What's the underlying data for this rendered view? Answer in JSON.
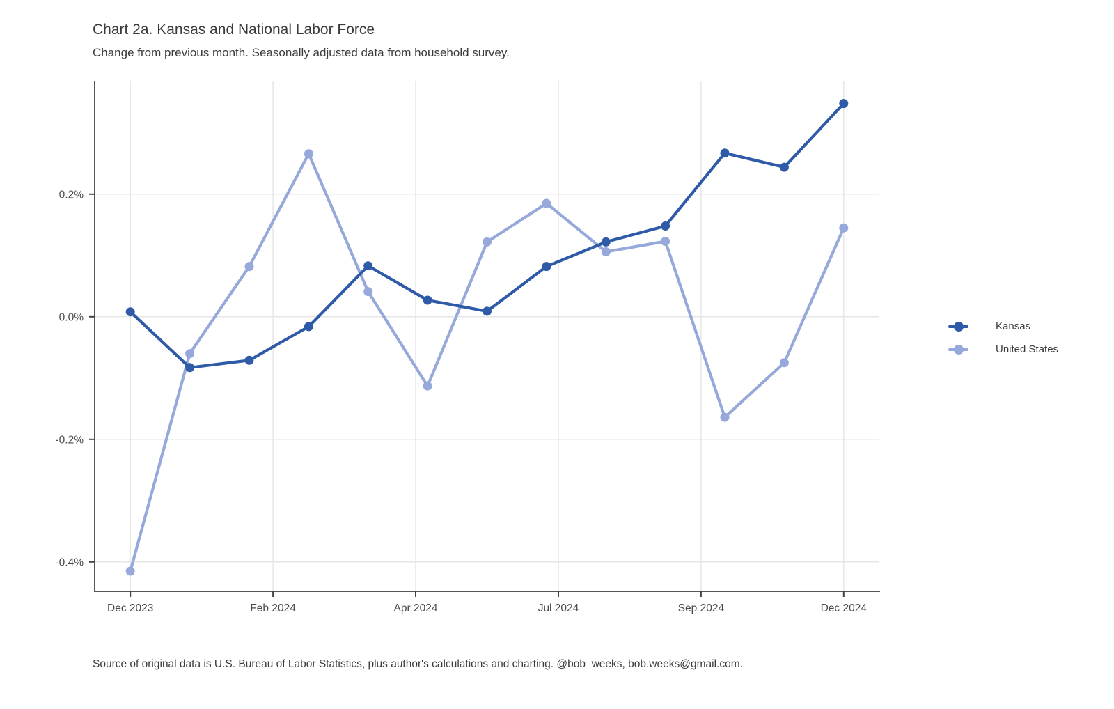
{
  "header": {
    "title": "Chart 2a. Kansas and National Labor Force",
    "subtitle": "Change from previous month. Seasonally adjusted data from household survey."
  },
  "caption": {
    "text": "Source of original data is U.S. Bureau of Labor Statistics, plus author's calculations and charting. @bob_weeks, bob.weeks@gmail.com."
  },
  "legend": {
    "position": "right",
    "items": [
      {
        "label": "Kansas",
        "color": "#2e5aa8"
      },
      {
        "label": "United States",
        "color": "#97a9da"
      }
    ]
  },
  "chart_data": {
    "type": "line",
    "title": "Chart 2a. Kansas and National Labor Force",
    "subtitle": "Change from previous month. Seasonally adjusted data from household survey.",
    "x": [
      "Dec 2023",
      "Jan 2024",
      "Feb 2024",
      "Mar 2024",
      "Apr 2024",
      "May 2024",
      "Jun 2024",
      "Jul 2024",
      "Aug 2024",
      "Sep 2024",
      "Oct 2024",
      "Nov 2024",
      "Dec 2024"
    ],
    "series": [
      {
        "name": "Kansas",
        "color": "#2e5aa8",
        "values": [
          0.008,
          -0.083,
          -0.071,
          -0.016,
          0.083,
          0.027,
          0.009,
          0.082,
          0.122,
          0.148,
          0.267,
          0.244,
          0.348
        ]
      },
      {
        "name": "United States",
        "color": "#97a9da",
        "values": [
          -0.415,
          -0.06,
          0.082,
          0.266,
          0.041,
          -0.113,
          0.122,
          0.185,
          0.106,
          0.123,
          -0.164,
          -0.075,
          0.145
        ]
      }
    ],
    "ylabel": "",
    "xlabel": "",
    "y_ticks": [
      0.2,
      0.0,
      -0.2,
      -0.4
    ],
    "y_tick_labels": [
      "0.2%",
      "0.0%",
      "-0.2%",
      "-0.4%"
    ],
    "x_tick_positions": [
      0,
      2.4,
      4.8,
      7.2,
      9.6,
      12
    ],
    "x_tick_labels": [
      "Dec 2023",
      "Feb 2024",
      "Apr 2024",
      "Jul 2024",
      "Sep 2024",
      "Dec 2024"
    ],
    "ylim": [
      -0.448,
      0.385
    ],
    "xlim": [
      -0.6,
      12.6
    ],
    "grid": true,
    "legend_position": "right",
    "units": "percent change from previous month",
    "colors": {
      "grid": "#e6e6e6",
      "axis": "#565656",
      "tick": "#444444",
      "tick_text": "#4a4a4a"
    }
  }
}
